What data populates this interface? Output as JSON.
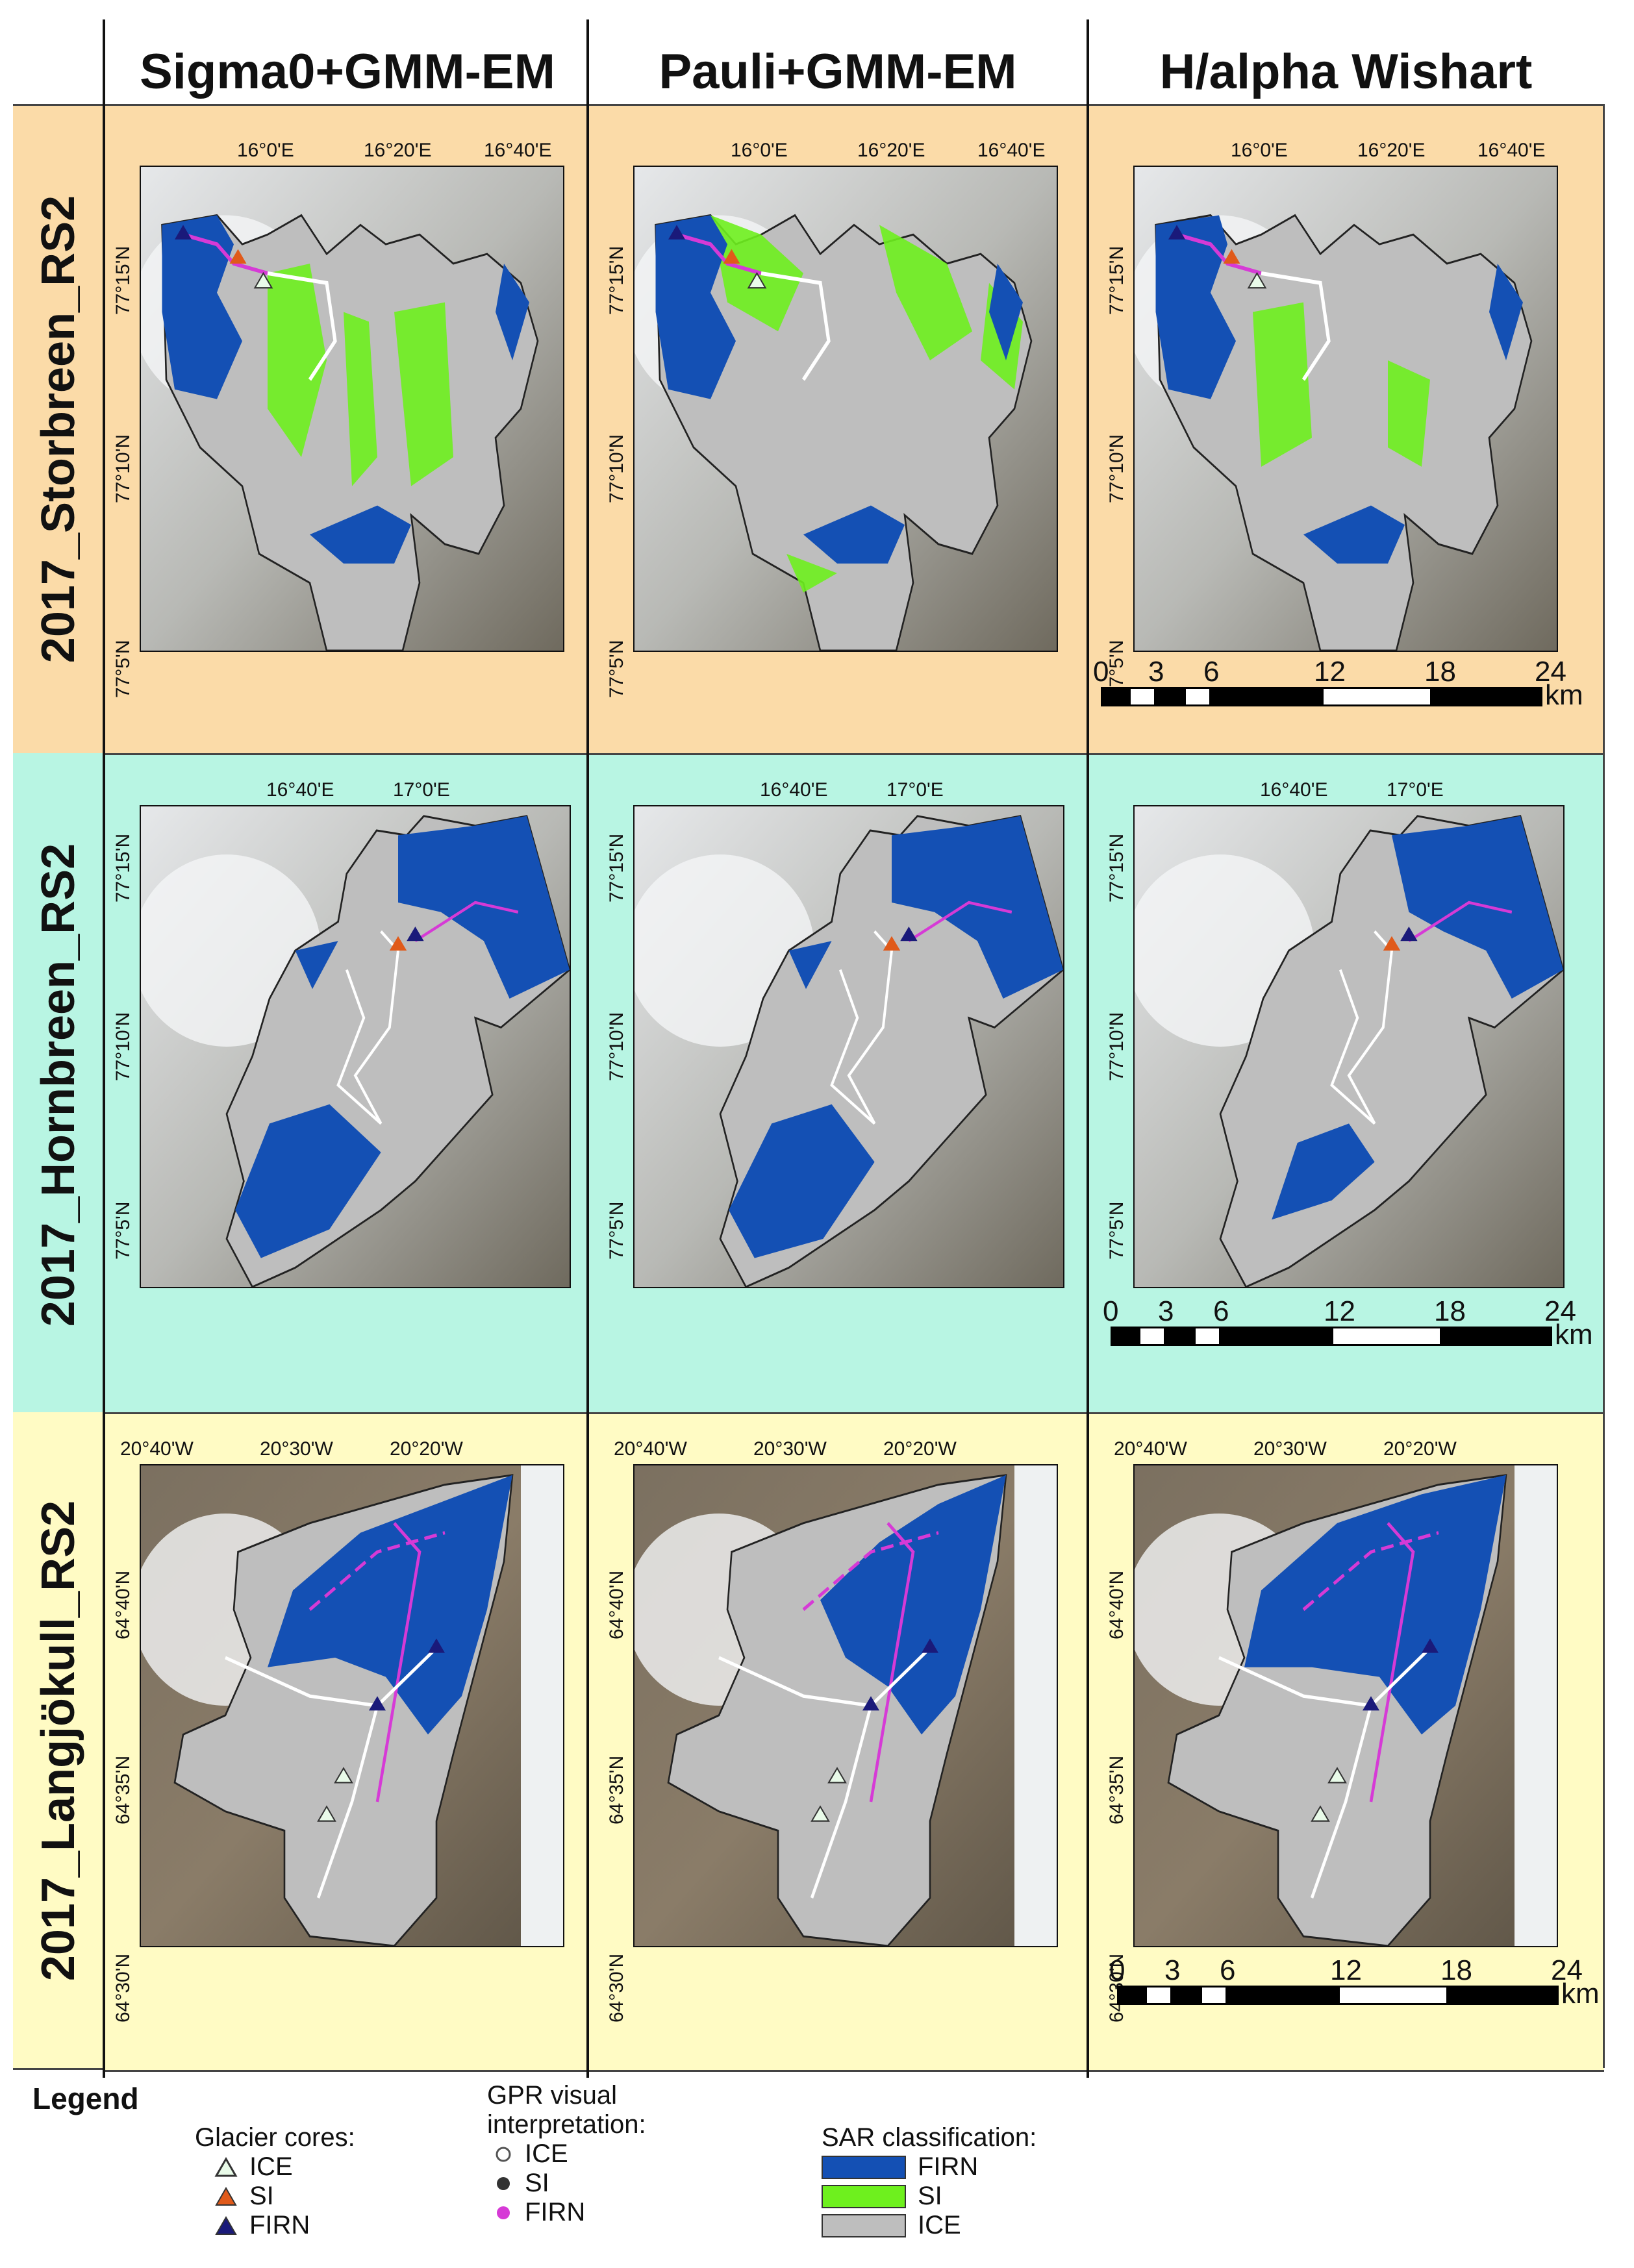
{
  "columns": [
    "Sigma0+GMM-EM",
    "Pauli+GMM-EM",
    "H/alpha Wishart"
  ],
  "rows": [
    {
      "label": "2017_Storbreen_RS2",
      "lon_ticks": [
        "16°0'E",
        "16°20'E",
        "16°40'E"
      ],
      "lat_ticks": [
        "77°15'N",
        "77°10'N",
        "77°5'N"
      ],
      "colors": {
        "bg": "#fbdba8"
      }
    },
    {
      "label": "2017_Hornbreen_RS2",
      "lon_ticks": [
        "16°40'E",
        "17°0'E"
      ],
      "lat_ticks": [
        "77°15'N",
        "77°10'N",
        "77°5'N"
      ],
      "colors": {
        "bg": "#b8f5e3"
      }
    },
    {
      "label": "2017_Langjökull_RS2",
      "lon_ticks": [
        "20°40'W",
        "20°30'W",
        "20°20'W"
      ],
      "lat_ticks": [
        "64°40'N",
        "64°35'N",
        "64°30'N"
      ],
      "colors": {
        "bg": "#fffbc4"
      }
    }
  ],
  "scalebar": {
    "labels": [
      "0",
      "3",
      "6",
      "12",
      "18",
      "24"
    ],
    "values": [
      0,
      3,
      6,
      12,
      18,
      24
    ],
    "unit": "km"
  },
  "legend": {
    "title": "Legend",
    "cores": {
      "heading": "Glacier cores:",
      "items": [
        {
          "label": "ICE",
          "color": "#e9fbe9"
        },
        {
          "label": "SI",
          "color": "#e05a1a"
        },
        {
          "label": "FIRN",
          "color": "#1a1a7a"
        }
      ]
    },
    "gpr": {
      "heading_line1": "GPR visual",
      "heading_line2": "interpretation:",
      "items": [
        {
          "label": "ICE",
          "color": "#ffffff"
        },
        {
          "label": "SI",
          "color": "#333333"
        },
        {
          "label": "FIRN",
          "color": "#d63ad6"
        }
      ]
    },
    "sar": {
      "heading": "SAR classification:",
      "items": [
        {
          "label": "FIRN",
          "color": "#1450b4"
        },
        {
          "label": "SI",
          "color": "#6ef01e"
        },
        {
          "label": "ICE",
          "color": "#bebebe"
        }
      ]
    }
  }
}
